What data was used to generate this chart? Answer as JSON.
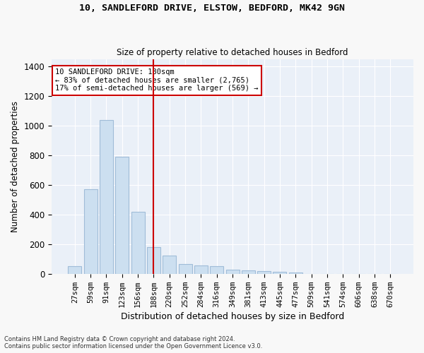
{
  "title_line1": "10, SANDLEFORD DRIVE, ELSTOW, BEDFORD, MK42 9GN",
  "title_line2": "Size of property relative to detached houses in Bedford",
  "xlabel": "Distribution of detached houses by size in Bedford",
  "ylabel": "Number of detached properties",
  "categories": [
    "27sqm",
    "59sqm",
    "91sqm",
    "123sqm",
    "156sqm",
    "188sqm",
    "220sqm",
    "252sqm",
    "284sqm",
    "316sqm",
    "349sqm",
    "381sqm",
    "413sqm",
    "445sqm",
    "477sqm",
    "509sqm",
    "541sqm",
    "574sqm",
    "606sqm",
    "638sqm",
    "670sqm"
  ],
  "values": [
    50,
    570,
    1040,
    790,
    420,
    180,
    125,
    65,
    55,
    50,
    30,
    25,
    20,
    12,
    8,
    0,
    0,
    0,
    0,
    0,
    0
  ],
  "bar_color": "#ccdff0",
  "bar_edge_color": "#a0bcd8",
  "vline_x": 5,
  "vline_color": "#cc0000",
  "annotation_text": "10 SANDLEFORD DRIVE: 180sqm\n← 83% of detached houses are smaller (2,765)\n17% of semi-detached houses are larger (569) →",
  "annotation_box_color": "#ffffff",
  "annotation_box_edge_color": "#cc0000",
  "ylim": [
    0,
    1450
  ],
  "yticks": [
    0,
    200,
    400,
    600,
    800,
    1000,
    1200,
    1400
  ],
  "background_color": "#eaf0f8",
  "grid_color": "#ffffff",
  "footer_line1": "Contains HM Land Registry data © Crown copyright and database right 2024.",
  "footer_line2": "Contains public sector information licensed under the Open Government Licence v3.0."
}
